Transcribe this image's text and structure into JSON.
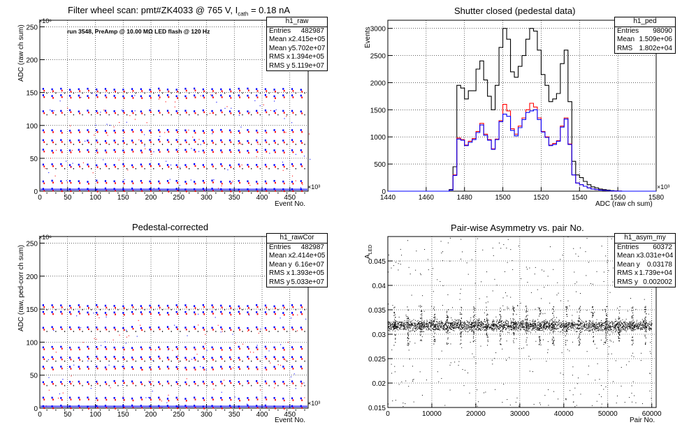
{
  "chart_data": [
    {
      "type": "scatter",
      "title": "Filter wheel scan: pmt#ZK4033 @   765 V, I_cath = 0.18 nA",
      "title_main": "Filter wheel scan: pmt#ZK4033 @   765 V, I",
      "title_sub": "cath",
      "title_tail": " = 0.18 nA",
      "annotation": "run 3548, PreAmp @ 10.00 MΩ LED flash @  120 Hz",
      "xlabel": "Event No.",
      "ylabel": "ADC (raw ch sum)",
      "x_exponent": "×10³",
      "y_exponent": "×10⁶",
      "xlim": [
        0,
        483
      ],
      "ylim": [
        0,
        260
      ],
      "xticks": [
        0,
        50,
        100,
        150,
        200,
        250,
        300,
        350,
        400,
        450
      ],
      "yticks": [
        0,
        50,
        100,
        150,
        200,
        250
      ],
      "grid": true,
      "scan_period": 16,
      "levels": [
        3,
        15,
        40,
        62,
        77,
        92,
        122,
        145,
        155
      ],
      "series": [
        {
          "color": "#0000ff"
        },
        {
          "color": "#ff0000"
        },
        {
          "color": "#000000"
        }
      ],
      "stats": {
        "name": "h1_raw",
        "rows": [
          [
            "Entries",
            "482987"
          ],
          [
            "Mean x",
            "2.415e+05"
          ],
          [
            "Mean y",
            "5.702e+07"
          ],
          [
            "RMS x",
            "1.394e+05"
          ],
          [
            "RMS y",
            "5.119e+07"
          ]
        ]
      }
    },
    {
      "type": "line",
      "title": "Shutter closed (pedestal data)",
      "xlabel": "ADC (raw ch sum)",
      "ylabel": "Events",
      "x_exponent": "×10³",
      "xlim": [
        1440,
        1580
      ],
      "ylim": [
        0,
        3150
      ],
      "xticks": [
        1440,
        1460,
        1480,
        1500,
        1520,
        1540,
        1560,
        1580
      ],
      "yticks": [
        0,
        500,
        1000,
        1500,
        2000,
        2500,
        3000
      ],
      "grid": true,
      "x": [
        1470,
        1472,
        1474,
        1476,
        1478,
        1480,
        1482,
        1484,
        1486,
        1488,
        1490,
        1492,
        1494,
        1496,
        1498,
        1500,
        1502,
        1504,
        1506,
        1508,
        1510,
        1512,
        1514,
        1516,
        1518,
        1520,
        1522,
        1524,
        1526,
        1528,
        1530,
        1532,
        1534,
        1536,
        1538,
        1540,
        1542,
        1544,
        1546,
        1548,
        1550,
        1552,
        1554,
        1556,
        1558,
        1560,
        1562
      ],
      "series": [
        {
          "color": "#000000",
          "values": [
            0,
            30,
            450,
            1950,
            1900,
            1700,
            1850,
            1850,
            2250,
            2400,
            2050,
            1750,
            1500,
            1950,
            2650,
            3000,
            2800,
            2200,
            2100,
            2300,
            2500,
            2800,
            3000,
            2950,
            2600,
            2150,
            1950,
            1650,
            1700,
            1800,
            2350,
            2600,
            1650,
            550,
            300,
            250,
            180,
            120,
            80,
            60,
            40,
            30,
            20,
            10,
            5,
            2,
            0
          ]
        },
        {
          "color": "#ff0000",
          "values": [
            0,
            20,
            300,
            980,
            950,
            850,
            920,
            970,
            1100,
            1250,
            1050,
            950,
            780,
            960,
            1300,
            1600,
            1480,
            1150,
            1050,
            1200,
            1350,
            1500,
            1620,
            1550,
            1350,
            1100,
            1000,
            850,
            880,
            930,
            1200,
            1350,
            870,
            300,
            150,
            120,
            90,
            60,
            40,
            30,
            20,
            15,
            10,
            5,
            2,
            1,
            0
          ]
        },
        {
          "color": "#0000ff",
          "values": [
            0,
            20,
            290,
            960,
            940,
            840,
            900,
            950,
            1080,
            1220,
            1030,
            940,
            770,
            950,
            1280,
            1420,
            1380,
            1120,
            1020,
            1170,
            1320,
            1450,
            1480,
            1500,
            1320,
            1090,
            990,
            840,
            860,
            920,
            1180,
            1330,
            860,
            300,
            150,
            120,
            90,
            60,
            40,
            30,
            20,
            15,
            10,
            5,
            2,
            1,
            0
          ]
        }
      ],
      "stats": {
        "name": "h1_ped",
        "rows": [
          [
            "Entries",
            "98090"
          ],
          [
            "Mean",
            "1.509e+06"
          ],
          [
            "RMS",
            "1.802e+04"
          ]
        ]
      }
    },
    {
      "type": "scatter",
      "title": "Pedestal-corrected",
      "xlabel": "Event No.",
      "ylabel": "ADC (raw, ped-corr ch sum)",
      "x_exponent": "×10³",
      "y_exponent": "×10⁶",
      "xlim": [
        0,
        483
      ],
      "ylim": [
        0,
        260
      ],
      "xticks": [
        0,
        50,
        100,
        150,
        200,
        250,
        300,
        350,
        400,
        450
      ],
      "yticks": [
        0,
        50,
        100,
        150,
        200,
        250
      ],
      "grid": true,
      "scan_period": 16,
      "levels": [
        3,
        15,
        40,
        62,
        77,
        92,
        122,
        145,
        155
      ],
      "series": [
        {
          "color": "#0000ff"
        },
        {
          "color": "#ff0000"
        },
        {
          "color": "#000000"
        }
      ],
      "stats": {
        "name": "h1_rawCor",
        "rows": [
          [
            "Entries",
            "482987"
          ],
          [
            "Mean x",
            "2.414e+05"
          ],
          [
            "Mean y",
            "6.16e+07"
          ],
          [
            "RMS x",
            "1.393e+05"
          ],
          [
            "RMS y",
            "5.033e+07"
          ]
        ]
      }
    },
    {
      "type": "scatter",
      "title": "Pair-wise Asymmetry vs. pair No.",
      "xlabel": "Pair No.",
      "ylabel": "A_LED",
      "ylabel_main": "A",
      "ylabel_sub": "LED",
      "xlim": [
        0,
        61000
      ],
      "ylim": [
        0.015,
        0.05
      ],
      "xticks": [
        0,
        10000,
        20000,
        30000,
        40000,
        50000,
        60000
      ],
      "yticks": [
        0.015,
        0.02,
        0.025,
        0.03,
        0.035,
        0.04,
        0.045
      ],
      "ytick_labels": [
        "0.015",
        "0.02",
        "0.025",
        "0.03",
        "0.035",
        "0.04",
        "0.045"
      ],
      "grid": true,
      "band_center": 0.0318,
      "spike_period": 3000,
      "series": [
        {
          "color": "#000000"
        }
      ],
      "stats": {
        "name": "h1_asym_my",
        "rows": [
          [
            "Entries",
            "60372"
          ],
          [
            "Mean x",
            "3.031e+04"
          ],
          [
            "Mean y",
            "0.03178"
          ],
          [
            "RMS x",
            "1.739e+04"
          ],
          [
            "RMS y",
            "0.002002"
          ]
        ]
      }
    }
  ]
}
